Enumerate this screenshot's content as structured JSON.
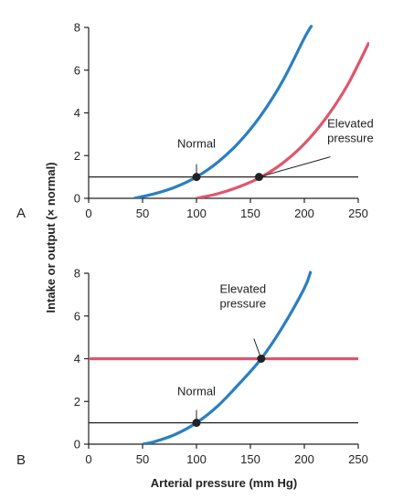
{
  "figure": {
    "ylabel": "Intake or output (× normal)",
    "xlabel": "Arterial pressure (mm Hg)"
  },
  "colors": {
    "blue": "#2a7fc1",
    "red": "#e0566b",
    "line": "#222222",
    "point": "#222222"
  },
  "chart_data": [
    {
      "type": "line",
      "panel_label": "A",
      "xlim": [
        0,
        250
      ],
      "ylim": [
        0,
        8
      ],
      "xticks": [
        0,
        50,
        100,
        150,
        200,
        250
      ],
      "yticks": [
        0,
        2,
        4,
        6,
        8
      ],
      "series": [
        {
          "color": "#2a7fc1",
          "x": [
            42,
            60,
            80,
            100,
            120,
            140,
            160,
            180,
            200,
            207
          ],
          "y": [
            0.0,
            0.2,
            0.52,
            1.0,
            1.7,
            2.65,
            3.9,
            5.5,
            7.5,
            8.1
          ]
        },
        {
          "color": "#e0566b",
          "x": [
            100,
            120,
            140,
            160,
            180,
            200,
            220,
            240,
            260
          ],
          "y": [
            0.0,
            0.22,
            0.55,
            1.0,
            1.65,
            2.55,
            3.75,
            5.3,
            7.3
          ]
        },
        {
          "color": "#222222",
          "x": [
            0,
            250
          ],
          "y": [
            1,
            1
          ]
        }
      ],
      "points": [
        {
          "x": 100,
          "y": 1
        },
        {
          "x": 158,
          "y": 1
        }
      ],
      "annotations": [
        {
          "text": [
            "Normal"
          ],
          "x": 100,
          "y": 1
        },
        {
          "text": [
            "Elevated",
            "pressure"
          ],
          "x": 158,
          "y": 1
        }
      ]
    },
    {
      "type": "line",
      "panel_label": "B",
      "xlim": [
        0,
        250
      ],
      "ylim": [
        0,
        8
      ],
      "xticks": [
        0,
        50,
        100,
        150,
        200,
        250
      ],
      "yticks": [
        0,
        2,
        4,
        6,
        8
      ],
      "series": [
        {
          "color": "#2a7fc1",
          "x": [
            50,
            60,
            80,
            100,
            120,
            140,
            160,
            180,
            200,
            206
          ],
          "y": [
            0.0,
            0.1,
            0.45,
            1.0,
            1.8,
            2.85,
            4.0,
            5.5,
            7.3,
            8.1
          ]
        },
        {
          "color": "#e0566b",
          "x": [
            0,
            250
          ],
          "y": [
            4,
            4
          ]
        },
        {
          "color": "#222222",
          "x": [
            0,
            250
          ],
          "y": [
            1,
            1
          ]
        }
      ],
      "points": [
        {
          "x": 100,
          "y": 1
        },
        {
          "x": 160,
          "y": 4
        }
      ],
      "annotations": [
        {
          "text": [
            "Normal"
          ],
          "x": 100,
          "y": 1
        },
        {
          "text": [
            "Elevated",
            "pressure"
          ],
          "x": 160,
          "y": 4
        }
      ]
    }
  ]
}
